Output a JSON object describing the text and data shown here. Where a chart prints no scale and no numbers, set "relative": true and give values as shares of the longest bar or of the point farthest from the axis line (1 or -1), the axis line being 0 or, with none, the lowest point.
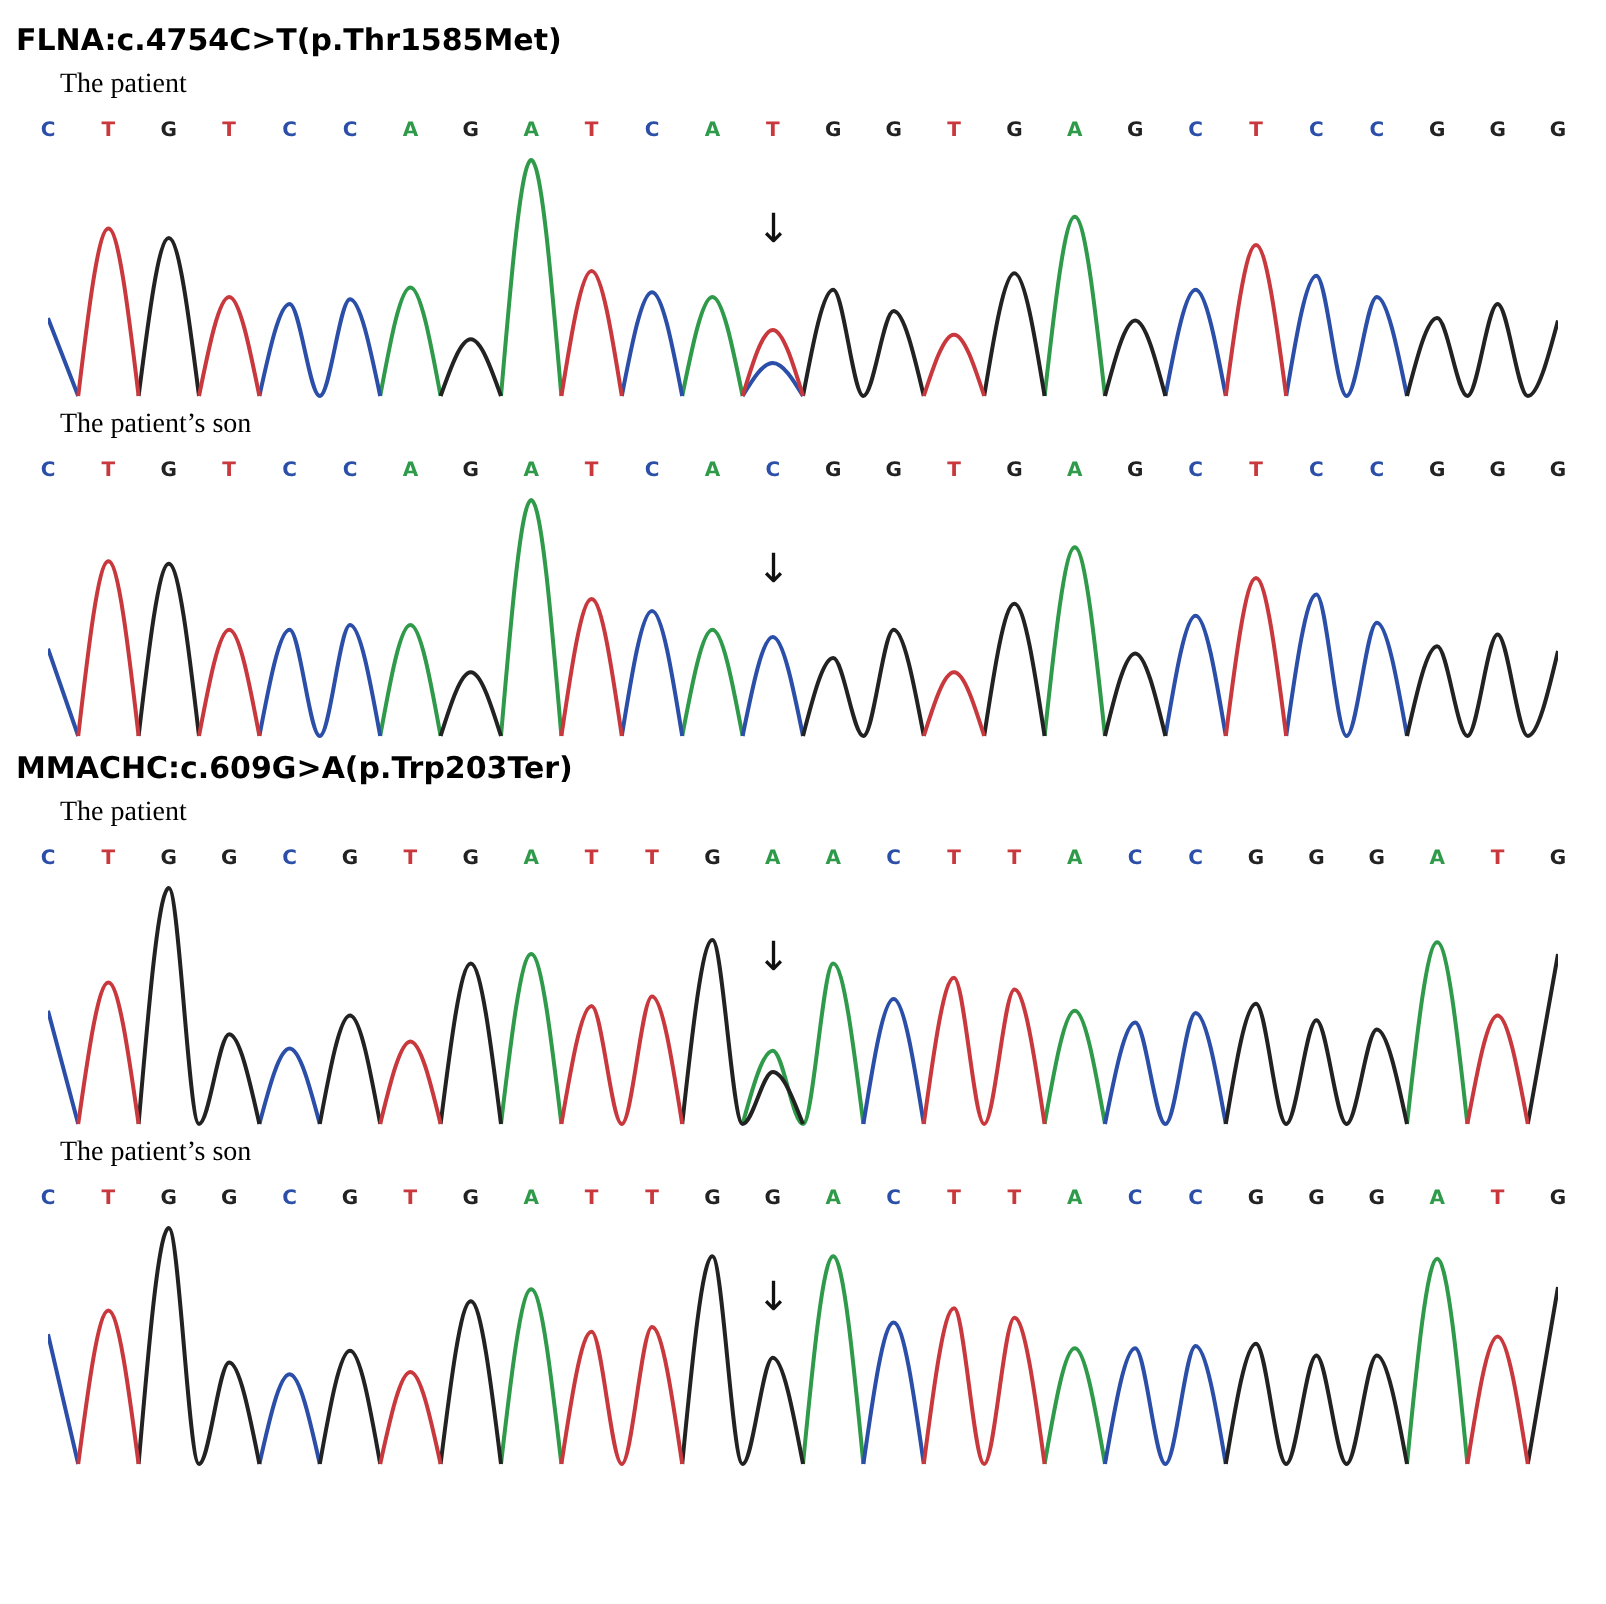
{
  "chart_data": [
    {
      "type": "line",
      "title": "FLNA:c.4754C>T(p.Thr1585Met)",
      "subtitle": "The patient",
      "relative": true,
      "legend": false,
      "categories": [
        "C",
        null,
        "T",
        null,
        "G",
        null,
        "T",
        null,
        "C",
        null,
        "C",
        null,
        "A",
        null,
        "G",
        null,
        "A",
        null,
        "T",
        null,
        "C",
        null,
        "A",
        null,
        "T",
        null,
        "G",
        null,
        "G",
        null,
        "T",
        null,
        "G",
        null,
        "A",
        null,
        "G",
        null,
        "C",
        null,
        "T",
        null,
        "C",
        null,
        "C",
        null,
        "G",
        null,
        "G",
        null,
        "G"
      ],
      "annotations": [
        "↓"
      ],
      "series": [
        {
          "color": "#2e9a4a",
          "values": [
            null,
            null,
            null,
            null,
            null,
            null,
            null,
            null,
            null,
            null,
            null,
            0,
            0.46,
            0,
            null,
            0,
            1,
            0,
            null,
            null,
            null,
            0,
            0.42,
            0,
            null,
            null,
            null,
            null,
            null,
            null,
            null,
            null,
            null,
            0,
            0.76,
            0,
            null,
            null,
            null,
            null,
            null,
            null,
            null,
            null,
            null,
            null,
            null,
            null,
            null,
            null,
            null
          ]
        },
        {
          "color": "#2b4fa8",
          "values": [
            0.33,
            0,
            null,
            null,
            null,
            null,
            null,
            0,
            0.39,
            0,
            0.41,
            0,
            null,
            null,
            null,
            null,
            null,
            null,
            null,
            0,
            0.44,
            0,
            null,
            0,
            0.14,
            0,
            null,
            null,
            null,
            null,
            null,
            null,
            null,
            null,
            null,
            null,
            null,
            0,
            0.45,
            0,
            null,
            0,
            0.51,
            0,
            0.42,
            0,
            null,
            null,
            null,
            null,
            null
          ]
        },
        {
          "color": "#222222",
          "values": [
            null,
            null,
            null,
            0,
            0.67,
            0,
            null,
            null,
            null,
            null,
            null,
            null,
            null,
            0,
            0.24,
            0,
            null,
            null,
            null,
            null,
            null,
            null,
            null,
            null,
            null,
            0,
            0.45,
            0,
            0.36,
            0,
            null,
            0,
            0.52,
            0,
            null,
            0,
            0.32,
            0,
            null,
            null,
            null,
            null,
            null,
            null,
            null,
            0,
            0.33,
            0,
            0.39,
            0,
            0.32
          ]
        },
        {
          "color": "#c8383c",
          "values": [
            null,
            0,
            0.71,
            0,
            null,
            0,
            0.42,
            0,
            null,
            null,
            null,
            null,
            null,
            null,
            null,
            null,
            null,
            0,
            0.53,
            0,
            null,
            null,
            null,
            0,
            0.28,
            0,
            null,
            null,
            null,
            0,
            0.26,
            0,
            null,
            null,
            null,
            null,
            null,
            null,
            null,
            0,
            0.64,
            0,
            null,
            null,
            null,
            null,
            null,
            null,
            null,
            null,
            null
          ]
        }
      ]
    },
    {
      "type": "line",
      "subtitle": "The patient’s son",
      "relative": true,
      "legend": false,
      "categories": [
        "C",
        null,
        "T",
        null,
        "G",
        null,
        "T",
        null,
        "C",
        null,
        "C",
        null,
        "A",
        null,
        "G",
        null,
        "A",
        null,
        "T",
        null,
        "C",
        null,
        "A",
        null,
        "C",
        null,
        "G",
        null,
        "G",
        null,
        "T",
        null,
        "G",
        null,
        "A",
        null,
        "G",
        null,
        "C",
        null,
        "T",
        null,
        "C",
        null,
        "C",
        null,
        "G",
        null,
        "G",
        null,
        "G"
      ],
      "annotations": [
        "↓"
      ],
      "series": [
        {
          "color": "#2e9a4a",
          "values": [
            null,
            null,
            null,
            null,
            null,
            null,
            null,
            null,
            null,
            null,
            null,
            0,
            0.47,
            0,
            null,
            0,
            1,
            0,
            null,
            null,
            null,
            0,
            0.45,
            0,
            null,
            null,
            null,
            null,
            null,
            null,
            null,
            null,
            null,
            0,
            0.8,
            0,
            null,
            null,
            null,
            null,
            null,
            null,
            null,
            null,
            null,
            null,
            null,
            null,
            null,
            null,
            null
          ]
        },
        {
          "color": "#2b4fa8",
          "values": [
            0.37,
            0,
            null,
            null,
            null,
            null,
            null,
            0,
            0.45,
            0,
            0.47,
            0,
            null,
            null,
            null,
            null,
            null,
            null,
            null,
            0,
            0.53,
            0,
            null,
            0,
            0.42,
            0,
            null,
            null,
            null,
            null,
            null,
            null,
            null,
            null,
            null,
            null,
            null,
            0,
            0.51,
            0,
            null,
            0,
            0.6,
            0,
            0.48,
            0,
            null,
            null,
            null,
            null,
            null
          ]
        },
        {
          "color": "#222222",
          "values": [
            null,
            null,
            null,
            0,
            0.73,
            0,
            null,
            null,
            null,
            null,
            null,
            null,
            null,
            0,
            0.27,
            0,
            null,
            null,
            null,
            null,
            null,
            null,
            null,
            null,
            null,
            0,
            0.33,
            0,
            0.45,
            0,
            null,
            0,
            0.56,
            0,
            null,
            0,
            0.35,
            0,
            null,
            null,
            null,
            null,
            null,
            null,
            null,
            0,
            0.38,
            0,
            0.43,
            0,
            0.36
          ]
        },
        {
          "color": "#c8383c",
          "values": [
            null,
            0,
            0.74,
            0,
            null,
            0,
            0.45,
            0,
            null,
            null,
            null,
            null,
            null,
            null,
            null,
            null,
            null,
            0,
            0.58,
            0,
            null,
            null,
            null,
            null,
            null,
            null,
            null,
            null,
            null,
            0,
            0.27,
            0,
            null,
            null,
            null,
            null,
            null,
            null,
            null,
            0,
            0.67,
            0,
            null,
            null,
            null,
            null,
            null,
            null,
            null,
            null,
            null
          ]
        }
      ]
    },
    {
      "type": "line",
      "title": "MMACHC:c.609G>A(p.Trp203Ter)",
      "subtitle": "The patient",
      "relative": true,
      "legend": false,
      "categories": [
        "C",
        null,
        "T",
        null,
        "G",
        null,
        "G",
        null,
        "C",
        null,
        "G",
        null,
        "T",
        null,
        "G",
        null,
        "A",
        null,
        "T",
        null,
        "T",
        null,
        "G",
        null,
        "A",
        null,
        "A",
        null,
        "C",
        null,
        "T",
        null,
        "T",
        null,
        "A",
        null,
        "C",
        null,
        "C",
        null,
        "G",
        null,
        "G",
        null,
        "G",
        null,
        "A",
        null,
        "T",
        null,
        "G"
      ],
      "annotations": [
        "↓"
      ],
      "series": [
        {
          "color": "#2e9a4a",
          "values": [
            null,
            null,
            null,
            null,
            null,
            null,
            null,
            null,
            null,
            null,
            null,
            null,
            null,
            null,
            null,
            0,
            0.72,
            0,
            null,
            null,
            null,
            null,
            null,
            0,
            0.31,
            0,
            0.68,
            0,
            null,
            null,
            null,
            null,
            null,
            0,
            0.48,
            0,
            null,
            null,
            null,
            null,
            null,
            null,
            null,
            null,
            null,
            0,
            0.77,
            0,
            null,
            null,
            null
          ]
        },
        {
          "color": "#2b4fa8",
          "values": [
            0.48,
            0,
            null,
            null,
            null,
            null,
            null,
            0,
            0.32,
            0,
            null,
            null,
            null,
            null,
            null,
            null,
            null,
            null,
            null,
            null,
            null,
            null,
            null,
            null,
            null,
            null,
            null,
            0,
            0.53,
            0,
            null,
            null,
            null,
            null,
            null,
            0,
            0.43,
            0,
            0.47,
            0,
            null,
            null,
            null,
            null,
            null,
            null,
            null,
            null,
            null,
            null,
            null
          ]
        },
        {
          "color": "#222222",
          "values": [
            null,
            null,
            null,
            0,
            1,
            0,
            0.38,
            0,
            null,
            0,
            0.46,
            0,
            null,
            0,
            0.68,
            0,
            null,
            null,
            null,
            null,
            null,
            0,
            0.78,
            0,
            0.22,
            0,
            null,
            null,
            null,
            null,
            null,
            null,
            null,
            null,
            null,
            null,
            null,
            null,
            null,
            0,
            0.51,
            0,
            0.44,
            0,
            0.4,
            0,
            null,
            null,
            null,
            0,
            0.72
          ]
        },
        {
          "color": "#c8383c",
          "values": [
            null,
            0,
            0.6,
            0,
            null,
            null,
            null,
            null,
            null,
            null,
            null,
            0,
            0.35,
            0,
            null,
            null,
            null,
            0,
            0.5,
            0,
            0.54,
            0,
            null,
            null,
            null,
            null,
            null,
            null,
            null,
            0,
            0.62,
            0,
            0.57,
            0,
            null,
            null,
            null,
            null,
            null,
            null,
            null,
            null,
            null,
            null,
            null,
            null,
            null,
            0,
            0.46,
            0,
            null
          ]
        }
      ]
    },
    {
      "type": "line",
      "subtitle": "The patient’s son",
      "relative": true,
      "legend": false,
      "categories": [
        "C",
        null,
        "T",
        null,
        "G",
        null,
        "G",
        null,
        "C",
        null,
        "G",
        null,
        "T",
        null,
        "G",
        null,
        "A",
        null,
        "T",
        null,
        "T",
        null,
        "G",
        null,
        "G",
        null,
        "A",
        null,
        "C",
        null,
        "T",
        null,
        "T",
        null,
        "A",
        null,
        "C",
        null,
        "C",
        null,
        "G",
        null,
        "G",
        null,
        "G",
        null,
        "A",
        null,
        "T",
        null,
        "G"
      ],
      "annotations": [
        "↓"
      ],
      "series": [
        {
          "color": "#2e9a4a",
          "values": [
            null,
            null,
            null,
            null,
            null,
            null,
            null,
            null,
            null,
            null,
            null,
            null,
            null,
            null,
            null,
            0,
            0.74,
            0,
            null,
            null,
            null,
            null,
            null,
            null,
            null,
            0,
            0.88,
            0,
            null,
            null,
            null,
            null,
            null,
            0,
            0.49,
            0,
            null,
            null,
            null,
            null,
            null,
            null,
            null,
            null,
            null,
            0,
            0.87,
            0,
            null,
            null,
            null
          ]
        },
        {
          "color": "#2b4fa8",
          "values": [
            0.55,
            0,
            null,
            null,
            null,
            null,
            null,
            0,
            0.38,
            0,
            null,
            null,
            null,
            null,
            null,
            null,
            null,
            null,
            null,
            null,
            null,
            null,
            null,
            null,
            null,
            null,
            null,
            0,
            0.6,
            0,
            null,
            null,
            null,
            null,
            null,
            0,
            0.49,
            0,
            0.5,
            0,
            null,
            null,
            null,
            null,
            null,
            null,
            null,
            null,
            null,
            null,
            null
          ]
        },
        {
          "color": "#222222",
          "values": [
            null,
            null,
            null,
            0,
            1,
            0,
            0.43,
            0,
            null,
            0,
            0.48,
            0,
            null,
            0,
            0.69,
            0,
            null,
            null,
            null,
            null,
            null,
            0,
            0.88,
            0,
            0.45,
            0,
            null,
            null,
            null,
            null,
            null,
            null,
            null,
            null,
            null,
            null,
            null,
            null,
            null,
            0,
            0.51,
            0,
            0.46,
            0,
            0.46,
            0,
            null,
            null,
            null,
            0,
            0.75
          ]
        },
        {
          "color": "#c8383c",
          "values": [
            null,
            0,
            0.65,
            0,
            null,
            null,
            null,
            null,
            null,
            null,
            null,
            0,
            0.39,
            0,
            null,
            null,
            null,
            0,
            0.56,
            0,
            0.58,
            0,
            null,
            null,
            null,
            null,
            null,
            null,
            null,
            0,
            0.66,
            0,
            0.62,
            0,
            null,
            null,
            null,
            null,
            null,
            null,
            null,
            null,
            null,
            null,
            null,
            null,
            null,
            0,
            0.54,
            0,
            null
          ]
        }
      ]
    }
  ]
}
